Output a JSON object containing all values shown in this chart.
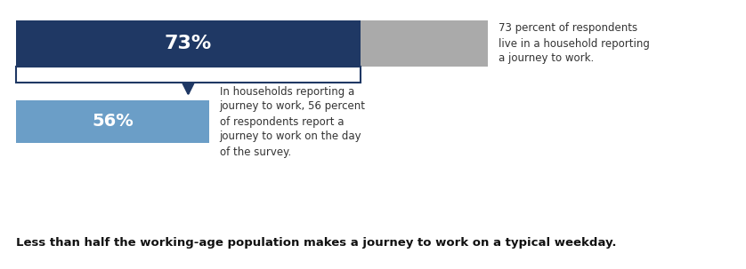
{
  "bar1_value": 73,
  "bar1_color": "#1F3864",
  "bar1_remainder_color": "#AAAAAA",
  "bar1_label": "73%",
  "bar1_text": "73 percent of respondents\nlive in a household reporting\na journey to work.",
  "bar2_value": 56,
  "bar2_color": "#6B9EC7",
  "bar2_label": "56%",
  "bar2_text": "In households reporting a\njourney to work, 56 percent\nof respondents report a\njourney to work on the day\nof the survey.",
  "bottom_text": "Less than half the working-age population makes a journey to work on a typical weekday.",
  "background_color": "#FFFFFF",
  "label_color": "#FFFFFF",
  "annotation_color": "#333333",
  "box_outline_color": "#1F3864",
  "arrow_color": "#1F3864"
}
